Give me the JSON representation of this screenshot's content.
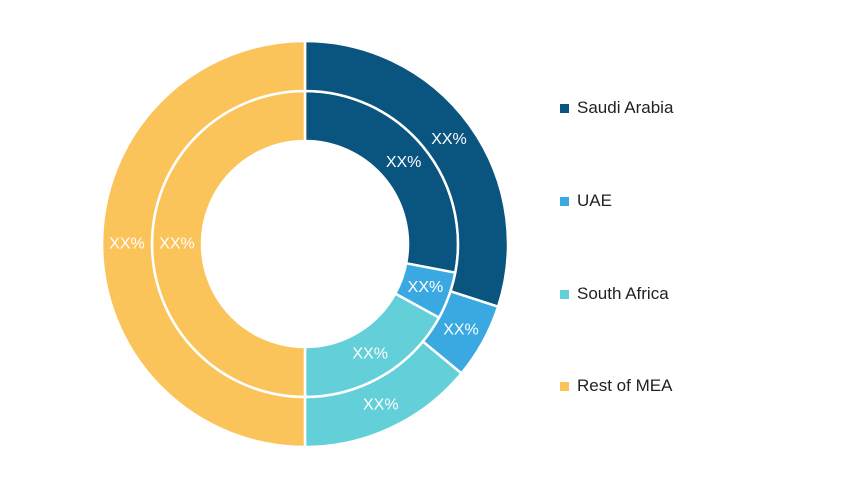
{
  "chart_data": {
    "type": "pie",
    "variant": "double donut",
    "legend_position": "right",
    "categories": [
      "Saudi Arabia",
      "UAE",
      "South Africa",
      "Rest of MEA"
    ],
    "colors": [
      "#0a5580",
      "#3aa9e2",
      "#63cfd8",
      "#fbc45b"
    ],
    "series": [
      {
        "ring": "inner",
        "values": [
          28,
          5,
          17,
          50
        ],
        "labels": [
          "XX%",
          "XX%",
          "XX%",
          "XX%"
        ]
      },
      {
        "ring": "outer",
        "values": [
          30,
          6,
          14,
          50
        ],
        "labels": [
          "XX%",
          "XX%",
          "XX%",
          "XX%"
        ]
      }
    ]
  }
}
